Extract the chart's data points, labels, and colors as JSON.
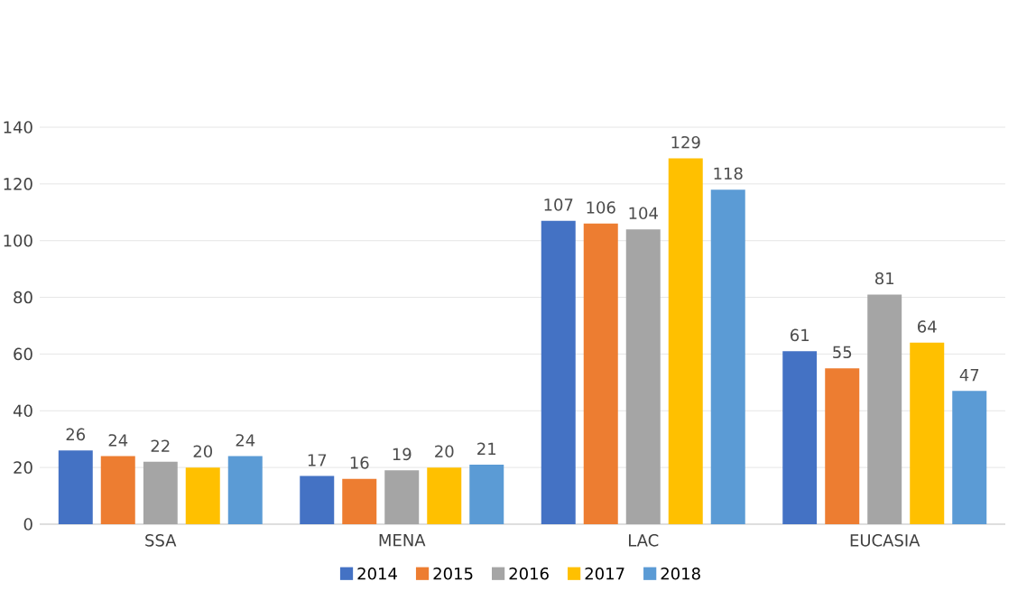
{
  "chart_data": {
    "type": "bar",
    "categories": [
      "SSA",
      "MENA",
      "LAC",
      "EUCASIA"
    ],
    "series": [
      {
        "name": "2014",
        "color": "#4472c4",
        "values": [
          26,
          17,
          107,
          61
        ]
      },
      {
        "name": "2015",
        "color": "#ed7d31",
        "values": [
          24,
          16,
          106,
          55
        ]
      },
      {
        "name": "2016",
        "color": "#a5a5a5",
        "values": [
          22,
          19,
          104,
          81
        ]
      },
      {
        "name": "2017",
        "color": "#ffc000",
        "values": [
          20,
          20,
          129,
          64
        ]
      },
      {
        "name": "2018",
        "color": "#5b9bd5",
        "values": [
          24,
          21,
          118,
          47
        ]
      }
    ],
    "ylim": [
      0,
      140
    ],
    "yticks": [
      0,
      20,
      40,
      60,
      80,
      100,
      120,
      140
    ],
    "grid": "y",
    "legend": "bottom",
    "data_labels": true
  }
}
